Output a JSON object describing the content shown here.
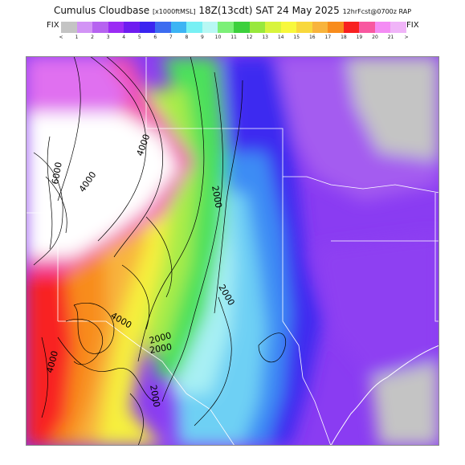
{
  "title": {
    "main": "Cumulus Cloudbase",
    "units": "[x1000ftMSL]",
    "time": "18Z(13cdt) SAT 24 May 2025",
    "forecast": "12hrFcst@0700z RAP"
  },
  "fix_label_left": "FIX",
  "fix_label_right": "FIX",
  "scale": {
    "colors": [
      "#c4c4c4",
      "#d294f5",
      "#b663f0",
      "#9b2cf4",
      "#6e1cf0",
      "#3a24f0",
      "#3c6cf0",
      "#3cb4f4",
      "#78f0f4",
      "#b8f8f4",
      "#7cf078",
      "#3cd03c",
      "#98e83c",
      "#d8f43c",
      "#f8f83c",
      "#f8d83c",
      "#f8b43c",
      "#f88c1c",
      "#f82020",
      "#f858a0",
      "#f48cf4",
      "#f0b4f8"
    ],
    "ticks": [
      "<",
      "1",
      "2",
      "3",
      "4",
      "5",
      "6",
      "7",
      "8",
      "9",
      "10",
      "11",
      "12",
      "13",
      "14",
      "15",
      "16",
      "17",
      "18",
      "19",
      "20",
      "21",
      ">"
    ]
  },
  "map": {
    "contour_labels": [
      "4000",
      "2000",
      "6000",
      "4000",
      "2000",
      "2000",
      "4000",
      "2000",
      "4000",
      "2000"
    ]
  }
}
